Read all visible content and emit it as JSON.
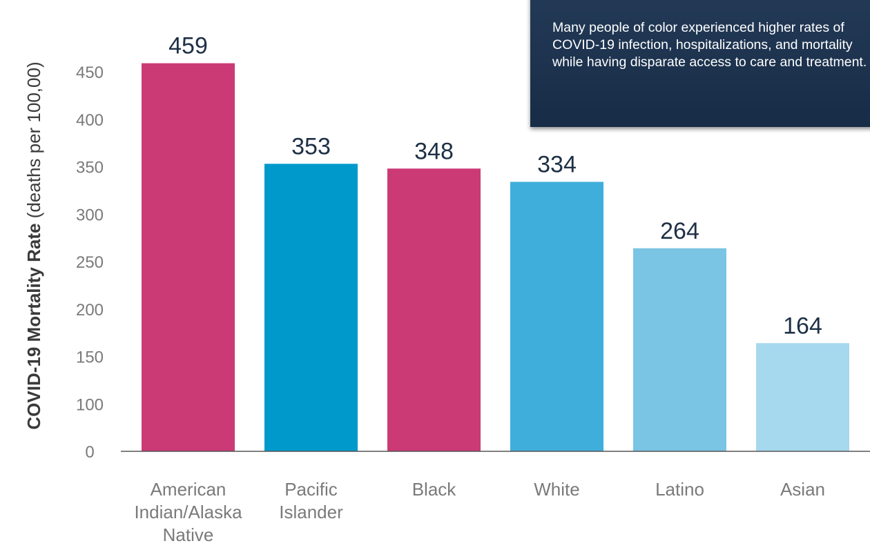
{
  "chart_data": {
    "type": "bar",
    "ylabel_bold": "COVID-19 Mortality Rate",
    "ylabel_rest": " (deaths per 100,00)",
    "categories": [
      [
        "American",
        "Indian/Alaska",
        "Native"
      ],
      [
        "Pacific",
        "Islander"
      ],
      [
        "Black"
      ],
      [
        "White"
      ],
      [
        "Latino"
      ],
      [
        "Asian"
      ]
    ],
    "values": [
      459,
      353,
      348,
      334,
      264,
      164
    ],
    "value_labels": [
      "459",
      "353",
      "348",
      "334",
      "264",
      "164"
    ],
    "bar_colors": [
      "#cc3a76",
      "#0099cc",
      "#cc3a76",
      "#40aedb",
      "#7ac4e4",
      "#a6d8ee"
    ],
    "yticks": [
      0,
      100,
      150,
      200,
      250,
      300,
      350,
      400,
      450
    ],
    "ytick_labels": [
      "0",
      "100",
      "150",
      "200",
      "250",
      "300",
      "350",
      "400",
      "450"
    ],
    "ylim": [
      50,
      480
    ],
    "grid": false
  },
  "callout": {
    "text": "Many people of color experienced higher rates of COVID-19 infection, hospitalizations, and mortality while having disparate access to care and treatment."
  }
}
